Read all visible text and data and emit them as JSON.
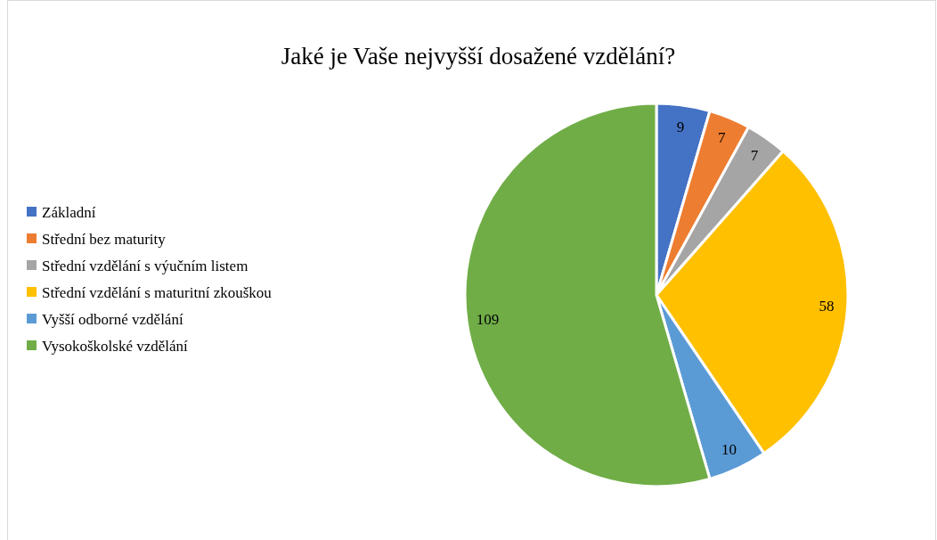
{
  "chart_data": {
    "type": "pie",
    "title": "Jaké je Vaše nejvyšší dosažené vzdělání?",
    "categories": [
      "Základní",
      "Střední bez maturity",
      "Střední vzdělání s výučním listem",
      "Střední vzdělání s maturitní zkouškou",
      "Vyšší odborné vzdělání",
      "Vysokoškolské vzdělání"
    ],
    "values": [
      9,
      7,
      7,
      58,
      10,
      109
    ],
    "colors": [
      "#4472c4",
      "#ed7d31",
      "#a5a5a5",
      "#ffc000",
      "#5b9bd5",
      "#70ad47"
    ],
    "data_labels": true,
    "legend": "left"
  }
}
